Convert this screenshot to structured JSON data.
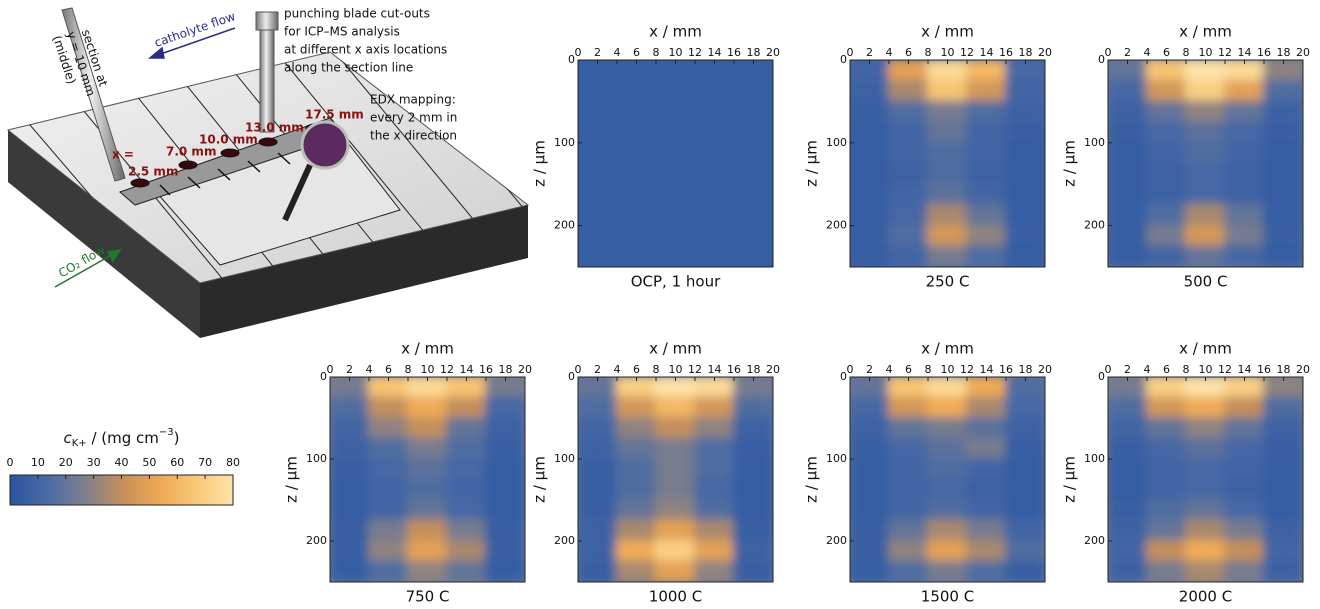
{
  "diagram": {
    "section_1": "section at",
    "section_2": "y = 10 mm",
    "section_3": "(middle)",
    "catholyte_flow": "catholyte flow",
    "co2_flow": "CO₂ flow",
    "punch_1": "punching blade cut-outs",
    "punch_2": "for ICP–MS analysis",
    "punch_3": "at different x axis locations",
    "punch_4": "along the section line",
    "edx_1": "EDX mapping:",
    "edx_2": "every 2 mm in",
    "edx_3": "the x direction",
    "x_eq": "x =",
    "locations": [
      "2.5 mm",
      "7.0 mm",
      "10.0 mm",
      "13.0 mm",
      "17.5 mm"
    ]
  },
  "chart_data": [
    {
      "type": "heatmap",
      "caption": "OCP, 1 hour",
      "xlabel": "x / mm",
      "ylabel": "z / µm",
      "xlim": [
        0,
        20
      ],
      "ylim": [
        0,
        250
      ],
      "y_inverted": true,
      "xticks": [
        0,
        2,
        4,
        6,
        8,
        10,
        12,
        14,
        16,
        18,
        20
      ],
      "yticks": [
        0,
        100,
        200
      ],
      "x_bins": [
        0,
        4,
        8,
        12,
        16,
        20
      ],
      "y_bins": [
        0,
        25,
        50,
        75,
        100,
        125,
        150,
        175,
        200,
        225,
        250
      ],
      "values": [
        [
          5,
          5,
          5,
          5,
          5
        ],
        [
          5,
          5,
          5,
          5,
          5
        ],
        [
          5,
          5,
          5,
          5,
          5
        ],
        [
          5,
          5,
          5,
          5,
          5
        ],
        [
          5,
          5,
          5,
          5,
          5
        ],
        [
          5,
          5,
          5,
          5,
          5
        ],
        [
          5,
          5,
          5,
          5,
          5
        ],
        [
          5,
          5,
          5,
          5,
          5
        ],
        [
          5,
          5,
          5,
          5,
          5
        ],
        [
          5,
          5,
          5,
          5,
          5
        ]
      ]
    },
    {
      "type": "heatmap",
      "caption": "250 C",
      "xlabel": "x / mm",
      "ylabel": "z / µm",
      "xlim": [
        0,
        20
      ],
      "ylim": [
        0,
        250
      ],
      "y_inverted": true,
      "xticks": [
        0,
        2,
        4,
        6,
        8,
        10,
        12,
        14,
        16,
        18,
        20
      ],
      "yticks": [
        0,
        100,
        200
      ],
      "x_bins": [
        0,
        4,
        8,
        12,
        16,
        20
      ],
      "y_bins": [
        0,
        25,
        50,
        75,
        100,
        125,
        150,
        175,
        200,
        225,
        250
      ],
      "values": [
        [
          10,
          50,
          75,
          60,
          12
        ],
        [
          8,
          35,
          65,
          45,
          10
        ],
        [
          6,
          15,
          25,
          15,
          8
        ],
        [
          5,
          10,
          20,
          10,
          6
        ],
        [
          5,
          10,
          15,
          10,
          5
        ],
        [
          5,
          8,
          15,
          8,
          5
        ],
        [
          5,
          10,
          18,
          10,
          5
        ],
        [
          5,
          12,
          35,
          20,
          5
        ],
        [
          5,
          15,
          45,
          30,
          6
        ],
        [
          5,
          10,
          25,
          15,
          5
        ]
      ]
    },
    {
      "type": "heatmap",
      "caption": "500 C",
      "xlabel": "x / mm",
      "ylabel": "z / µm",
      "xlim": [
        0,
        20
      ],
      "ylim": [
        0,
        250
      ],
      "y_inverted": true,
      "xticks": [
        0,
        2,
        4,
        6,
        8,
        10,
        12,
        14,
        16,
        18,
        20
      ],
      "yticks": [
        0,
        100,
        200
      ],
      "x_bins": [
        0,
        4,
        8,
        12,
        16,
        20
      ],
      "y_bins": [
        0,
        25,
        50,
        75,
        100,
        125,
        150,
        175,
        200,
        225,
        250
      ],
      "values": [
        [
          20,
          65,
          80,
          75,
          30
        ],
        [
          12,
          45,
          70,
          50,
          15
        ],
        [
          8,
          20,
          30,
          20,
          8
        ],
        [
          6,
          12,
          18,
          12,
          6
        ],
        [
          5,
          10,
          15,
          10,
          5
        ],
        [
          5,
          8,
          12,
          8,
          5
        ],
        [
          5,
          8,
          12,
          8,
          5
        ],
        [
          5,
          15,
          35,
          20,
          5
        ],
        [
          5,
          25,
          45,
          25,
          6
        ],
        [
          5,
          10,
          20,
          12,
          5
        ]
      ]
    },
    {
      "type": "heatmap",
      "caption": "750 C",
      "xlabel": "x / mm",
      "ylabel": "z / µm",
      "xlim": [
        0,
        20
      ],
      "ylim": [
        0,
        250
      ],
      "y_inverted": true,
      "xticks": [
        0,
        2,
        4,
        6,
        8,
        10,
        12,
        14,
        16,
        18,
        20
      ],
      "yticks": [
        0,
        100,
        200
      ],
      "x_bins": [
        0,
        4,
        8,
        12,
        16,
        20
      ],
      "y_bins": [
        0,
        25,
        50,
        75,
        100,
        125,
        150,
        175,
        200,
        225,
        250
      ],
      "values": [
        [
          25,
          65,
          75,
          65,
          25
        ],
        [
          15,
          40,
          55,
          40,
          12
        ],
        [
          10,
          30,
          40,
          20,
          8
        ],
        [
          8,
          15,
          25,
          15,
          6
        ],
        [
          6,
          12,
          18,
          12,
          5
        ],
        [
          5,
          10,
          15,
          10,
          5
        ],
        [
          5,
          10,
          20,
          12,
          5
        ],
        [
          6,
          25,
          40,
          25,
          6
        ],
        [
          6,
          30,
          50,
          35,
          6
        ],
        [
          5,
          15,
          30,
          20,
          5
        ]
      ]
    },
    {
      "type": "heatmap",
      "caption": "1000 C",
      "xlabel": "x / mm",
      "ylabel": "z / µm",
      "xlim": [
        0,
        20
      ],
      "ylim": [
        0,
        250
      ],
      "y_inverted": true,
      "xticks": [
        0,
        2,
        4,
        6,
        8,
        10,
        12,
        14,
        16,
        18,
        20
      ],
      "yticks": [
        0,
        100,
        200
      ],
      "x_bins": [
        0,
        4,
        8,
        12,
        16,
        20
      ],
      "y_bins": [
        0,
        25,
        50,
        75,
        100,
        125,
        150,
        175,
        200,
        225,
        250
      ],
      "values": [
        [
          20,
          70,
          80,
          75,
          25
        ],
        [
          15,
          45,
          60,
          45,
          15
        ],
        [
          10,
          30,
          40,
          30,
          8
        ],
        [
          8,
          20,
          25,
          15,
          6
        ],
        [
          6,
          15,
          25,
          15,
          5
        ],
        [
          6,
          15,
          25,
          12,
          5
        ],
        [
          6,
          20,
          30,
          15,
          5
        ],
        [
          8,
          35,
          50,
          35,
          6
        ],
        [
          8,
          55,
          70,
          50,
          8
        ],
        [
          6,
          35,
          50,
          30,
          6
        ]
      ]
    },
    {
      "type": "heatmap",
      "caption": "1500 C",
      "xlabel": "x / mm",
      "ylabel": "z / µm",
      "xlim": [
        0,
        20
      ],
      "ylim": [
        0,
        250
      ],
      "y_inverted": true,
      "xticks": [
        0,
        2,
        4,
        6,
        8,
        10,
        12,
        14,
        16,
        18,
        20
      ],
      "yticks": [
        0,
        100,
        200
      ],
      "x_bins": [
        0,
        4,
        8,
        12,
        16,
        20
      ],
      "y_bins": [
        0,
        25,
        50,
        75,
        100,
        125,
        150,
        175,
        200,
        225,
        250
      ],
      "values": [
        [
          20,
          65,
          75,
          55,
          15
        ],
        [
          12,
          45,
          55,
          35,
          12
        ],
        [
          8,
          20,
          25,
          18,
          8
        ],
        [
          6,
          12,
          18,
          25,
          6
        ],
        [
          5,
          10,
          15,
          10,
          5
        ],
        [
          5,
          10,
          12,
          8,
          5
        ],
        [
          5,
          10,
          15,
          10,
          5
        ],
        [
          6,
          20,
          35,
          25,
          10
        ],
        [
          6,
          30,
          50,
          35,
          15
        ],
        [
          5,
          15,
          25,
          15,
          6
        ]
      ]
    },
    {
      "type": "heatmap",
      "caption": "2000 C",
      "xlabel": "x / mm",
      "ylabel": "z / µm",
      "xlim": [
        0,
        20
      ],
      "ylim": [
        0,
        250
      ],
      "y_inverted": true,
      "xticks": [
        0,
        2,
        4,
        6,
        8,
        10,
        12,
        14,
        16,
        18,
        20
      ],
      "yticks": [
        0,
        100,
        200
      ],
      "x_bins": [
        0,
        4,
        8,
        12,
        16,
        20
      ],
      "y_bins": [
        0,
        25,
        50,
        75,
        100,
        125,
        150,
        175,
        200,
        225,
        250
      ],
      "values": [
        [
          25,
          70,
          80,
          70,
          30
        ],
        [
          15,
          45,
          55,
          40,
          15
        ],
        [
          10,
          20,
          30,
          20,
          8
        ],
        [
          6,
          12,
          18,
          12,
          6
        ],
        [
          5,
          10,
          12,
          10,
          5
        ],
        [
          5,
          10,
          12,
          8,
          5
        ],
        [
          6,
          15,
          20,
          12,
          5
        ],
        [
          8,
          20,
          35,
          25,
          8
        ],
        [
          10,
          40,
          55,
          40,
          10
        ],
        [
          8,
          25,
          35,
          25,
          8
        ]
      ]
    },
    {
      "type": "colorbar",
      "label_symbol": "c",
      "label_sub": "K+",
      "label_unit": " / (mg cm",
      "label_sup": "−3",
      "label_close": ")",
      "xlim": [
        0,
        80
      ],
      "xticks": [
        0,
        10,
        20,
        30,
        40,
        50,
        60,
        70,
        80
      ],
      "colors": [
        "#2a55a3",
        "#4a6aa4",
        "#7d7f8c",
        "#c48f5c",
        "#eda752",
        "#f9c878",
        "#fde3a8"
      ]
    }
  ]
}
